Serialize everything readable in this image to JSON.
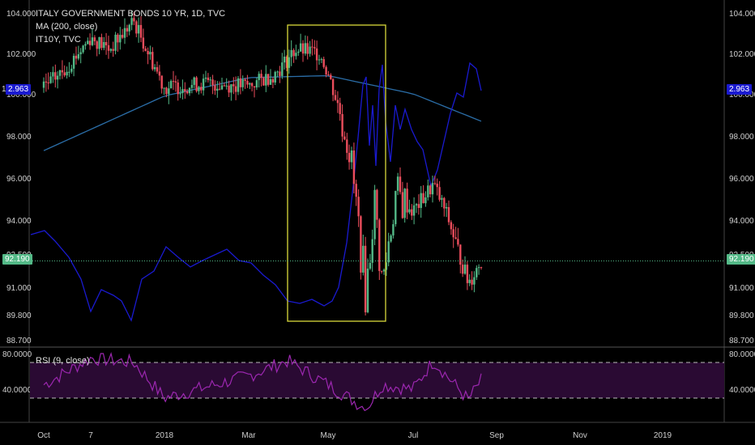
{
  "legend": {
    "line1": "ITALY GOVERNMENT BONDS 10 YR, 1D, TVC",
    "line2": "MA (200, close)",
    "line3": "IT10Y, TVC"
  },
  "rsi_legend": "RSI (9, close)",
  "tags": {
    "yield_left": "2.963",
    "yield_right": "2.963",
    "price_left": "92.190",
    "price_right": "92.190",
    "yield_left_stub": "1"
  },
  "colors": {
    "background": "#000000",
    "up_candle": "#53b987",
    "down_candle": "#eb4d5c",
    "ma_line": "#2b6ea8",
    "yield_line": "#1a1ad0",
    "rsi_line": "#9c27b0",
    "rsi_band": "#2a0a33",
    "highlight_box": "#d9d93a",
    "price_line": "#53b987"
  },
  "chart_data": [
    {
      "type": "candlestick",
      "title": "ITALY GOVERNMENT BONDS 10 YR, 1D, TVC",
      "x_ticks": [
        "Oct",
        "7",
        "2018",
        "Mar",
        "May",
        "Jul",
        "Sep",
        "Nov",
        "2019"
      ],
      "y_ticks": [
        "104.000",
        "102.000",
        "100.000",
        "98.000",
        "96.000",
        "94.000",
        "92.500",
        "91.000",
        "89.800",
        "88.700"
      ],
      "ylim": [
        88.2,
        104.5
      ],
      "y_scale": "non-linear (compressed below 94)",
      "last_price": 92.19,
      "close_path": [
        {
          "date": "Oct",
          "value": 100.3
        },
        {
          "date": "mid Oct",
          "value": 101.2
        },
        {
          "date": "7",
          "value": 102.8
        },
        {
          "date": "mid Nov",
          "value": 102.2
        },
        {
          "date": "early Dec",
          "value": 103.6
        },
        {
          "date": "2018",
          "value": 100.3
        },
        {
          "date": "Feb",
          "value": 100.5
        },
        {
          "date": "Mar",
          "value": 100.4
        },
        {
          "date": "late Mar",
          "value": 101.0
        },
        {
          "date": "Apr",
          "value": 102.2
        },
        {
          "date": "late Apr",
          "value": 102.0
        },
        {
          "date": "May",
          "value": 101.0
        },
        {
          "date": "mid May",
          "value": 97.8
        },
        {
          "date": "late May",
          "value": 90.6
        },
        {
          "date": "early Jun",
          "value": 95.0
        },
        {
          "date": "mid Jun",
          "value": 91.0
        },
        {
          "date": "late Jun",
          "value": 95.2
        },
        {
          "date": "Jul",
          "value": 94.4
        },
        {
          "date": "mid Jul",
          "value": 95.7
        },
        {
          "date": "early Aug",
          "value": 94.2
        },
        {
          "date": "mid Aug",
          "value": 91.2
        },
        {
          "date": "late Aug",
          "value": 92.19
        }
      ],
      "series": [
        {
          "name": "MA (200, close)",
          "type": "line",
          "path": [
            {
              "date": "Oct",
              "value": 97.3
            },
            {
              "date": "2018",
              "value": 99.9
            },
            {
              "date": "Mar",
              "value": 100.8
            },
            {
              "date": "May",
              "value": 100.9
            },
            {
              "date": "Jul",
              "value": 100.0
            },
            {
              "date": "late Aug",
              "value": 98.7
            }
          ]
        },
        {
          "name": "IT10Y, TVC",
          "type": "line",
          "current_value": 2.963
        }
      ],
      "annotations": [
        "yellow rectangle highlighting Apr–mid Jun sell-off"
      ]
    },
    {
      "type": "line",
      "title": "RSI (9, close)",
      "y_ticks": [
        "80.0000",
        "40.0000"
      ],
      "ylim": [
        15,
        82
      ],
      "bands": [
        70,
        30
      ],
      "path": [
        {
          "date": "Oct",
          "value": 45
        },
        {
          "date": "7",
          "value": 75
        },
        {
          "date": "early Dec",
          "value": 70
        },
        {
          "date": "2018",
          "value": 30
        },
        {
          "date": "Mar",
          "value": 55
        },
        {
          "date": "early Apr",
          "value": 72
        },
        {
          "date": "May",
          "value": 45
        },
        {
          "date": "late May",
          "value": 18
        },
        {
          "date": "mid Jun",
          "value": 45
        },
        {
          "date": "Jul",
          "value": 40
        },
        {
          "date": "mid Jul",
          "value": 72
        },
        {
          "date": "mid Aug",
          "value": 28
        },
        {
          "date": "late Aug",
          "value": 50
        }
      ]
    }
  ]
}
